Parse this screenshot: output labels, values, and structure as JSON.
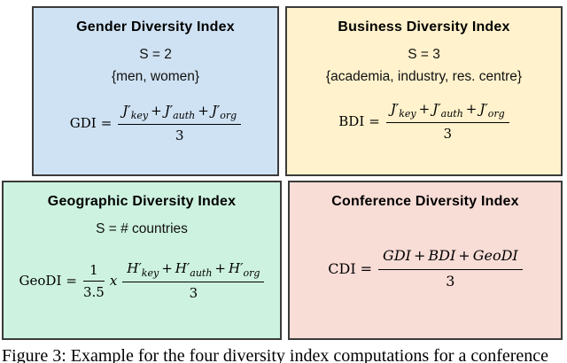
{
  "caption": "Figure 3: Example for the four diversity index computations for a conference",
  "colors": {
    "border": "#3b3b3b",
    "gender_bg": "#cfe2f3",
    "business_bg": "#fff2cc",
    "geographic_bg": "#cdf2e0",
    "conference_bg": "#f8dcd6"
  },
  "boxes": {
    "gender": {
      "bg": "#cfe2f3",
      "title": "Gender Diversity Index",
      "s_line": "S = 2",
      "set_line": "{men, women}",
      "formula": {
        "lhs": "GDI",
        "eq": "=",
        "plus": "+",
        "num": [
          {
            "base": "J′",
            "sub": "key"
          },
          {
            "base": "J′",
            "sub": "auth"
          },
          {
            "base": "J′",
            "sub": "org"
          }
        ],
        "den": "3"
      }
    },
    "business": {
      "bg": "#fff2cc",
      "title": "Business Diversity Index",
      "s_line": "S = 3",
      "set_line": "{academia, industry, res. centre}",
      "formula": {
        "lhs": "BDI",
        "eq": "=",
        "plus": "+",
        "num": [
          {
            "base": "J′",
            "sub": "key"
          },
          {
            "base": "J′",
            "sub": "auth"
          },
          {
            "base": "J′",
            "sub": "org"
          }
        ],
        "den": "3"
      }
    },
    "geographic": {
      "bg": "#cdf2e0",
      "title": "Geographic Diversity Index",
      "s_line": "S = # countries",
      "formula": {
        "lhs": "GeoDI",
        "eq": "=",
        "plus": "+",
        "times": "x",
        "pre": {
          "num": "1",
          "den": "3.5"
        },
        "num": [
          {
            "base": "H′",
            "sub": "key"
          },
          {
            "base": "H′",
            "sub": "auth"
          },
          {
            "base": "H′",
            "sub": "org"
          }
        ],
        "den": "3"
      }
    },
    "conference": {
      "bg": "#f8dcd6",
      "title": "Conference Diversity Index",
      "formula": {
        "lhs": "CDI",
        "eq": "=",
        "plus": "+",
        "num": [
          {
            "base": "GDI",
            "sub": ""
          },
          {
            "base": "BDI",
            "sub": ""
          },
          {
            "base": "GeoDI",
            "sub": ""
          }
        ],
        "den": "3"
      }
    }
  }
}
